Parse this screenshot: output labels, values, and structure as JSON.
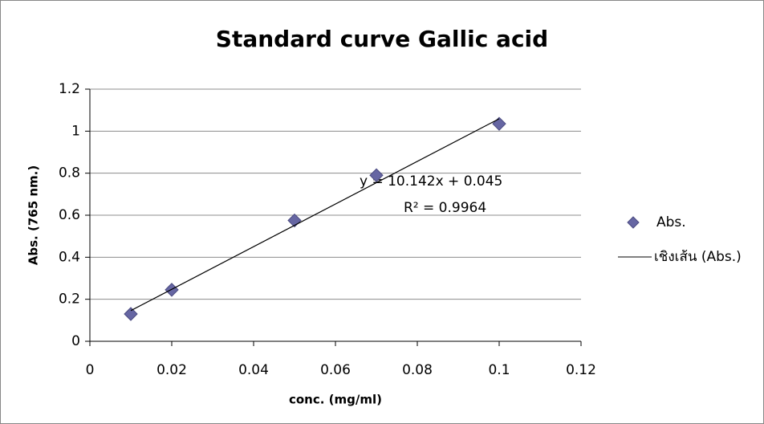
{
  "chart_data": {
    "type": "scatter",
    "title": "Standard curve Gallic acid",
    "x_label": "conc. (mg/ml)",
    "y_label": "Abs. (765 nm.)",
    "series": [
      {
        "name": "Abs.",
        "type": "scatter",
        "color": "#6666a3",
        "x": [
          0.01,
          0.02,
          0.05,
          0.07,
          0.1
        ],
        "values": [
          0.13,
          0.245,
          0.575,
          0.79,
          1.035
        ]
      },
      {
        "name": "เชิงเส้น (Abs.)",
        "type": "line",
        "color": "#000000",
        "x": [
          0.01,
          0.1
        ],
        "values": [
          0.146,
          1.059
        ]
      }
    ],
    "annotations": [
      "y = 10.142x + 0.045",
      "R² = 0.9964"
    ],
    "xlim": [
      0,
      0.12
    ],
    "xticks": [
      0,
      0.02,
      0.04,
      0.06,
      0.08,
      0.1,
      0.12
    ],
    "ylim": [
      0,
      1.2
    ],
    "yticks": [
      0,
      0.2,
      0.4,
      0.6,
      0.8,
      1,
      1.2
    ],
    "grid": true,
    "legend": "right"
  }
}
